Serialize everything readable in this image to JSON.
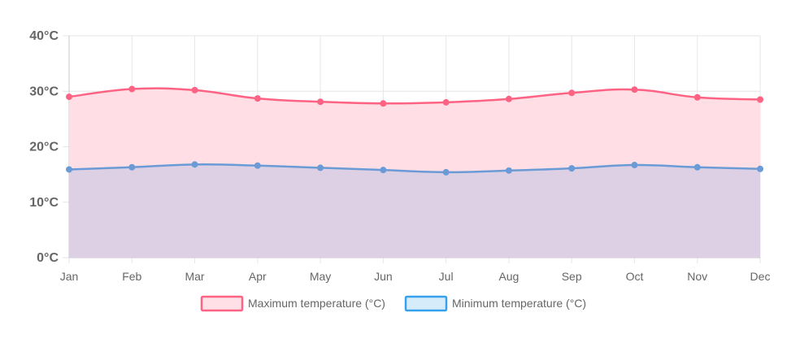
{
  "chart_data": {
    "type": "area",
    "categories": [
      "Jan",
      "Feb",
      "Mar",
      "Apr",
      "May",
      "Jun",
      "Jul",
      "Aug",
      "Sep",
      "Oct",
      "Nov",
      "Dec"
    ],
    "y_unit": "°C",
    "ylim": [
      0,
      40
    ],
    "yticks": [
      0,
      10,
      20,
      30,
      40
    ],
    "grid": true,
    "legend_position": "bottom",
    "series": [
      {
        "name": "Maximum temperature (°C)",
        "values": [
          29,
          30.4,
          30.2,
          28.7,
          28.1,
          27.8,
          28.0,
          28.6,
          29.7,
          30.3,
          28.9,
          28.5
        ],
        "line_color": "#ff6384",
        "fill_color": "#ffdfe5",
        "legend_fill": "#ffe0e6"
      },
      {
        "name": "Minimum temperature (°C)",
        "values": [
          15.9,
          16.3,
          16.8,
          16.6,
          16.2,
          15.8,
          15.4,
          15.7,
          16.1,
          16.7,
          16.3,
          16.0
        ],
        "line_color": "#6b9bd6",
        "fill_color": "#ddd0e4",
        "legend_fill": "#d7ecfb",
        "legend_border": "#36a2eb"
      }
    ],
    "grid_color": "#e6e6e6",
    "axis_color": "#c8c8c8"
  }
}
